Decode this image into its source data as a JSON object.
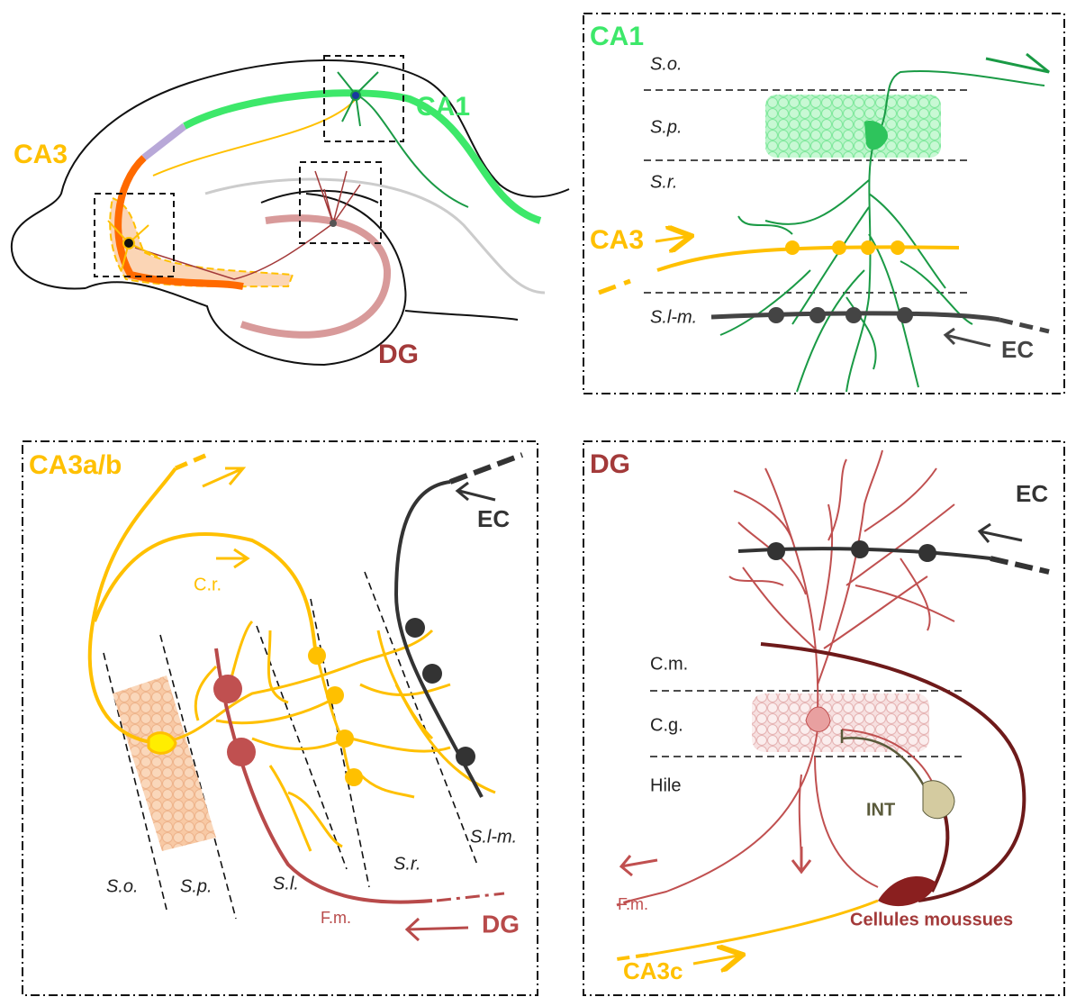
{
  "overview": {
    "ca3": "CA3",
    "ca1": "CA1",
    "dg": "DG"
  },
  "ca1_panel": {
    "title": "CA1",
    "layers": [
      "S.o.",
      "S.p.",
      "S.r.",
      "S.l-m."
    ],
    "ca3_input": "CA3",
    "ec_input": "EC"
  },
  "ca3_panel": {
    "title": "CA3a/b",
    "collateral": "C.r.",
    "ec_input": "EC",
    "layers": [
      "S.o.",
      "S.p.",
      "S.l.",
      "S.r.",
      "S.l-m."
    ],
    "mossy_fibers": "F.m.",
    "dg_input": "DG"
  },
  "dg_panel": {
    "title": "DG",
    "ec_input": "EC",
    "layers": [
      "C.m.",
      "C.g.",
      "Hile"
    ],
    "interneuron": "INT",
    "mossy_fibers": "F.m.",
    "mossy_cells": "Cellules moussues",
    "ca3c_input": "CA3c"
  }
}
